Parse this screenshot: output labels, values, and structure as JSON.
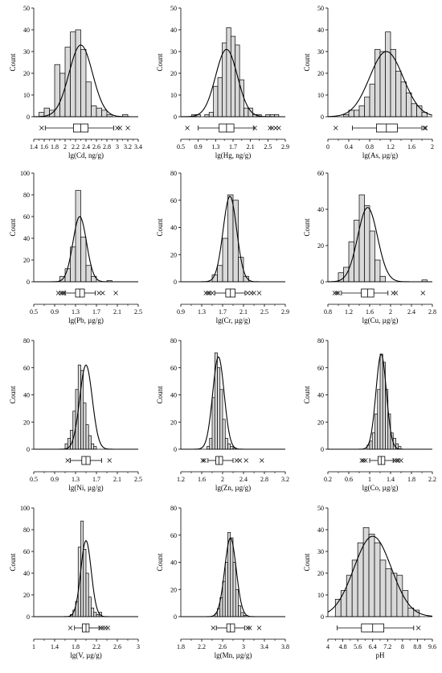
{
  "figure": {
    "background": "#ffffff",
    "bar_fill": "#d9d9d9",
    "stroke": "#000000"
  },
  "chart_data": [
    {
      "type": "bar",
      "xlabel": "lg(Cd, ng/g)",
      "ylabel": "Count",
      "ylim": [
        0,
        50
      ],
      "yticks": [
        "0",
        "10",
        "20",
        "30",
        "40",
        "50"
      ],
      "xlim": [
        1.4,
        3.4
      ],
      "xticks": [
        "1.4",
        "1.6",
        "1.8",
        "2",
        "2.2",
        "2.4",
        "2.6",
        "2.8",
        "3",
        "3.2",
        "3.4"
      ],
      "bin_start": 1.5,
      "bin_width": 0.1,
      "values": [
        2,
        4,
        3,
        24,
        20,
        32,
        39,
        40,
        31,
        16,
        5,
        4,
        3,
        1,
        0,
        0,
        1
      ],
      "normal_curve": {
        "mean": 2.3,
        "sd": 0.225,
        "peak": 33
      },
      "boxplot": {
        "whisker_low": 1.62,
        "q1": 2.16,
        "median": 2.3,
        "q3": 2.44,
        "whisker_high": 2.93,
        "outliers": [
          1.55,
          3.0,
          3.05,
          3.2
        ]
      }
    },
    {
      "type": "bar",
      "xlabel": "lg(Hg, ng/g)",
      "ylabel": "Count",
      "ylim": [
        0,
        50
      ],
      "yticks": [
        "0",
        "10",
        "20",
        "30",
        "40",
        "50"
      ],
      "xlim": [
        0.5,
        2.9
      ],
      "xticks": [
        "0.5",
        "0.9",
        "1.3",
        "1.7",
        "2.1",
        "2.5",
        "2.9"
      ],
      "bin_start": 0.75,
      "bin_width": 0.1,
      "values": [
        1,
        1,
        0,
        1,
        2,
        14,
        18,
        34,
        41,
        37,
        33,
        17,
        4,
        4,
        1,
        1,
        0,
        1,
        1,
        1
      ],
      "normal_curve": {
        "mean": 1.55,
        "sd": 0.25,
        "peak": 31
      },
      "boxplot": {
        "whisker_low": 0.9,
        "q1": 1.38,
        "median": 1.55,
        "q3": 1.72,
        "whisker_high": 2.18,
        "outliers": [
          0.65,
          2.2,
          2.55,
          2.6,
          2.68,
          2.75
        ]
      }
    },
    {
      "type": "bar",
      "xlabel": "lg(As, µg/g)",
      "ylabel": "Count",
      "ylim": [
        0,
        50
      ],
      "yticks": [
        "0",
        "10",
        "20",
        "30",
        "40",
        "50"
      ],
      "xlim": [
        0,
        2
      ],
      "xticks": [
        "0",
        "0.4",
        "0.8",
        "1.2",
        "1.6",
        "2"
      ],
      "bin_start": 0.3,
      "bin_width": 0.1,
      "values": [
        1,
        3,
        3,
        5,
        9,
        15,
        31,
        30,
        39,
        31,
        21,
        16,
        11,
        6,
        5,
        2
      ],
      "normal_curve": {
        "mean": 1.12,
        "sd": 0.32,
        "peak": 30
      },
      "boxplot": {
        "whisker_low": 0.47,
        "q1": 0.93,
        "median": 1.12,
        "q3": 1.33,
        "whisker_high": 1.8,
        "outliers": [
          0.15,
          1.85,
          1.87
        ]
      }
    },
    {
      "type": "bar",
      "xlabel": "lg(Pb, µg/g)",
      "ylabel": "Count",
      "ylim": [
        0,
        100
      ],
      "yticks": [
        "0",
        "20",
        "40",
        "60",
        "80",
        "100"
      ],
      "xlim": [
        0.5,
        2.5
      ],
      "xticks": [
        "0.5",
        "0.9",
        "1.3",
        "1.7",
        "2.1",
        "2.5"
      ],
      "bin_start": 1.0,
      "bin_width": 0.1,
      "values": [
        5,
        12,
        32,
        84,
        41,
        15,
        5,
        0,
        0,
        1
      ],
      "normal_curve": {
        "mean": 1.38,
        "sd": 0.13,
        "peak": 60
      },
      "boxplot": {
        "whisker_low": 1.1,
        "q1": 1.3,
        "median": 1.38,
        "q3": 1.47,
        "whisker_high": 1.68,
        "outliers": [
          0.97,
          1.02,
          1.05,
          1.08,
          1.75,
          1.82,
          2.07
        ]
      }
    },
    {
      "type": "bar",
      "xlabel": "lg(Cr, µg/g)",
      "ylabel": "Count",
      "ylim": [
        0,
        80
      ],
      "yticks": [
        "0",
        "20",
        "40",
        "60",
        "80"
      ],
      "xlim": [
        0.9,
        2.9
      ],
      "xticks": [
        "0.9",
        "1.3",
        "1.7",
        "2.1",
        "2.5",
        "2.9"
      ],
      "bin_start": 1.5,
      "bin_width": 0.1,
      "values": [
        5,
        12,
        32,
        64,
        60,
        18,
        4
      ],
      "normal_curve": {
        "mean": 1.84,
        "sd": 0.13,
        "peak": 63
      },
      "boxplot": {
        "whisker_low": 1.55,
        "q1": 1.76,
        "median": 1.85,
        "q3": 1.94,
        "whisker_high": 2.13,
        "outliers": [
          1.38,
          1.42,
          1.45,
          1.5,
          2.18,
          2.25,
          2.3,
          2.4
        ]
      }
    },
    {
      "type": "bar",
      "xlabel": "lg(Cu, µg/g)",
      "ylabel": "Count",
      "ylim": [
        0,
        60
      ],
      "yticks": [
        "0",
        "20",
        "40",
        "60"
      ],
      "xlim": [
        0.8,
        2.8
      ],
      "xticks": [
        "0.8",
        "1.2",
        "1.6",
        "2",
        "2.4",
        "2.8"
      ],
      "bin_start": 1.0,
      "bin_width": 0.1,
      "values": [
        5,
        8,
        22,
        34,
        48,
        42,
        28,
        12,
        3,
        0,
        0,
        0,
        0,
        0,
        0,
        0,
        1
      ],
      "normal_curve": {
        "mean": 1.56,
        "sd": 0.19,
        "peak": 41
      },
      "boxplot": {
        "whisker_low": 1.06,
        "q1": 1.44,
        "median": 1.56,
        "q3": 1.68,
        "whisker_high": 1.95,
        "outliers": [
          0.93,
          0.97,
          1.0,
          2.05,
          2.1,
          2.62
        ]
      }
    },
    {
      "type": "bar",
      "xlabel": "lg(Ni, µg/g)",
      "ylabel": "Count",
      "ylim": [
        0,
        80
      ],
      "yticks": [
        "0",
        "20",
        "40",
        "60",
        "80"
      ],
      "xlim": [
        0.5,
        2.5
      ],
      "xticks": [
        "0.5",
        "0.9",
        "1.3",
        "1.7",
        "2.1",
        "2.5"
      ],
      "bin_start": 1.1,
      "bin_width": 0.05,
      "values": [
        4,
        8,
        14,
        28,
        44,
        62,
        58,
        34,
        18,
        10,
        4,
        2
      ],
      "normal_curve": {
        "mean": 1.5,
        "sd": 0.12,
        "peak": 62
      },
      "boxplot": {
        "whisker_low": 1.2,
        "q1": 1.42,
        "median": 1.5,
        "q3": 1.58,
        "whisker_high": 1.8,
        "outliers": [
          1.15,
          1.95
        ]
      }
    },
    {
      "type": "bar",
      "xlabel": "lg(Zn, µg/g)",
      "ylabel": "Count",
      "ylim": [
        0,
        80
      ],
      "yticks": [
        "0",
        "20",
        "40",
        "60",
        "80"
      ],
      "xlim": [
        1.2,
        3.2
      ],
      "xticks": [
        "1.2",
        "1.6",
        "2",
        "2.4",
        "2.8",
        "3.2"
      ],
      "bin_start": 1.7,
      "bin_width": 0.05,
      "values": [
        2,
        8,
        38,
        71,
        60,
        44,
        22,
        8,
        4,
        2,
        1
      ],
      "normal_curve": {
        "mean": 1.92,
        "sd": 0.11,
        "peak": 68
      },
      "boxplot": {
        "whisker_low": 1.72,
        "q1": 1.87,
        "median": 1.93,
        "q3": 2.0,
        "whisker_high": 2.2,
        "outliers": [
          1.62,
          1.65,
          2.27,
          2.33,
          2.45,
          2.75
        ]
      }
    },
    {
      "type": "bar",
      "xlabel": "lg(Co, µg/g)",
      "ylabel": "Count",
      "ylim": [
        0,
        80
      ],
      "yticks": [
        "0",
        "20",
        "40",
        "60",
        "80"
      ],
      "xlim": [
        0.2,
        2.2
      ],
      "xticks": [
        "0.2",
        "0.6",
        "1",
        "1.4",
        "1.8",
        "2.2"
      ],
      "bin_start": 0.95,
      "bin_width": 0.05,
      "values": [
        3,
        6,
        12,
        26,
        44,
        70,
        64,
        44,
        26,
        12,
        8,
        4,
        2
      ],
      "normal_curve": {
        "mean": 1.22,
        "sd": 0.1,
        "peak": 70
      },
      "boxplot": {
        "whisker_low": 1.0,
        "q1": 1.16,
        "median": 1.22,
        "q3": 1.29,
        "whisker_high": 1.45,
        "outliers": [
          0.85,
          0.88,
          0.92,
          1.48,
          1.52,
          1.55,
          1.6
        ]
      }
    },
    {
      "type": "bar",
      "xlabel": "lg(V, µg/g)",
      "ylabel": "Count",
      "ylim": [
        0,
        100
      ],
      "yticks": [
        "0",
        "20",
        "40",
        "60",
        "80",
        "100"
      ],
      "xlim": [
        1.0,
        3.0
      ],
      "xticks": [
        "1",
        "1.4",
        "1.8",
        "2.2",
        "2.6",
        "3"
      ],
      "bin_start": 1.7,
      "bin_width": 0.05,
      "values": [
        2,
        6,
        14,
        64,
        88,
        62,
        40,
        18,
        8,
        4,
        2,
        4
      ],
      "normal_curve": {
        "mean": 2.0,
        "sd": 0.1,
        "peak": 70
      },
      "boxplot": {
        "whisker_low": 1.78,
        "q1": 1.93,
        "median": 2.0,
        "q3": 2.06,
        "whisker_high": 2.25,
        "outliers": [
          1.7,
          2.28,
          2.32,
          2.37,
          2.42
        ]
      }
    },
    {
      "type": "bar",
      "xlabel": "lg(Mn, µg/g)",
      "ylabel": "Count",
      "ylim": [
        0,
        80
      ],
      "yticks": [
        "0",
        "20",
        "40",
        "60",
        "80"
      ],
      "xlim": [
        1.8,
        3.8
      ],
      "xticks": [
        "1.8",
        "2.2",
        "2.6",
        "3",
        "3.4",
        "3.8"
      ],
      "bin_start": 2.45,
      "bin_width": 0.05,
      "values": [
        2,
        6,
        14,
        26,
        40,
        62,
        58,
        40,
        20,
        8,
        3,
        1
      ],
      "normal_curve": {
        "mean": 2.75,
        "sd": 0.11,
        "peak": 58
      },
      "boxplot": {
        "whisker_low": 2.48,
        "q1": 2.68,
        "median": 2.75,
        "q3": 2.83,
        "whisker_high": 3.02,
        "outliers": [
          2.42,
          3.08,
          3.12,
          3.3
        ]
      }
    },
    {
      "type": "bar",
      "xlabel": "pH",
      "ylabel": "Count",
      "ylim": [
        0,
        50
      ],
      "yticks": [
        "0",
        "10",
        "20",
        "30",
        "40",
        "50"
      ],
      "xlim": [
        4,
        9.6
      ],
      "xticks": [
        "4",
        "4.8",
        "5.6",
        "6.4",
        "7.2",
        "8",
        "8.8",
        "9.6"
      ],
      "bin_start": 4.4,
      "bin_width": 0.3,
      "values": [
        8,
        12,
        19,
        26,
        34,
        41,
        38,
        34,
        26,
        22,
        20,
        19,
        12,
        4,
        3
      ],
      "normal_curve": {
        "mean": 6.4,
        "sd": 1.0,
        "peak": 37
      },
      "boxplot": {
        "whisker_low": 4.5,
        "q1": 5.8,
        "median": 6.4,
        "q3": 7.0,
        "whisker_high": 8.6,
        "outliers": [
          8.85
        ]
      }
    }
  ]
}
